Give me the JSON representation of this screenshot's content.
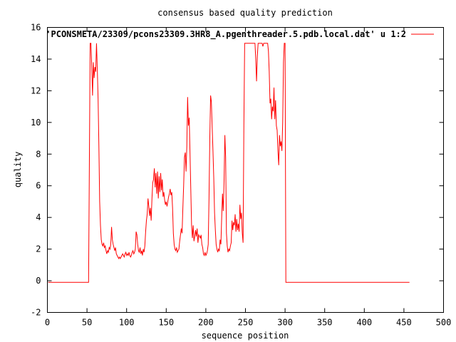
{
  "chart_data": {
    "type": "line",
    "title": "consensus based quality prediction",
    "xlabel": "sequence position",
    "ylabel": "quality",
    "xlim": [
      0,
      500
    ],
    "ylim": [
      -2,
      16
    ],
    "xticks": [
      0,
      50,
      100,
      150,
      200,
      250,
      300,
      350,
      400,
      450,
      500
    ],
    "yticks": [
      -2,
      0,
      2,
      4,
      6,
      8,
      10,
      12,
      14,
      16
    ],
    "grid": false,
    "legend_position": "top-right",
    "colors": {
      "series": "#ff0000",
      "axes": "#000000"
    },
    "series": [
      {
        "name": "'PCONSMETA/23309/pcons23309.3HR8_A.pgenthreader.5.pdb.local.dat' u 1:2",
        "points": [
          [
            1,
            -0.1
          ],
          [
            52,
            -0.1
          ],
          [
            53,
            7.5
          ],
          [
            54,
            15
          ],
          [
            55,
            15
          ],
          [
            56,
            13.5
          ],
          [
            57,
            11.7
          ],
          [
            58,
            13.8
          ],
          [
            59,
            12.8
          ],
          [
            60,
            13.5
          ],
          [
            61,
            13.2
          ],
          [
            62,
            15
          ],
          [
            63,
            13.4
          ],
          [
            64,
            11.5
          ],
          [
            65,
            8.5
          ],
          [
            66,
            5
          ],
          [
            67,
            3.5
          ],
          [
            68,
            2.6
          ],
          [
            69,
            2.3
          ],
          [
            70,
            2.2
          ],
          [
            71,
            2.4
          ],
          [
            72,
            2.1
          ],
          [
            73,
            2.2
          ],
          [
            74,
            1.9
          ],
          [
            75,
            1.7
          ],
          [
            76,
            1.9
          ],
          [
            77,
            1.8
          ],
          [
            78,
            2.1
          ],
          [
            79,
            2
          ],
          [
            80,
            2.3
          ],
          [
            81,
            3.4
          ],
          [
            82,
            2.6
          ],
          [
            83,
            2.3
          ],
          [
            84,
            2.1
          ],
          [
            85,
            1.9
          ],
          [
            86,
            2.1
          ],
          [
            87,
            1.7
          ],
          [
            88,
            1.6
          ],
          [
            89,
            1.5
          ],
          [
            90,
            1.4
          ],
          [
            91,
            1.5
          ],
          [
            92,
            1.4
          ],
          [
            93,
            1.5
          ],
          [
            94,
            1.6
          ],
          [
            95,
            1.7
          ],
          [
            96,
            1.6
          ],
          [
            97,
            1.5
          ],
          [
            98,
            1.7
          ],
          [
            99,
            1.8
          ],
          [
            100,
            1.6
          ],
          [
            101,
            1.7
          ],
          [
            102,
            1.6
          ],
          [
            103,
            1.8
          ],
          [
            104,
            1.6
          ],
          [
            105,
            1.5
          ],
          [
            106,
            1.6
          ],
          [
            107,
            1.8
          ],
          [
            108,
            1.9
          ],
          [
            109,
            1.7
          ],
          [
            110,
            1.8
          ],
          [
            111,
            2
          ],
          [
            112,
            3.1
          ],
          [
            113,
            2.9
          ],
          [
            114,
            2.3
          ],
          [
            115,
            1.9
          ],
          [
            116,
            1.8
          ],
          [
            117,
            2.1
          ],
          [
            118,
            1.7
          ],
          [
            119,
            1.9
          ],
          [
            120,
            1.6
          ],
          [
            121,
            2
          ],
          [
            122,
            1.8
          ],
          [
            123,
            2.2
          ],
          [
            124,
            3.1
          ],
          [
            125,
            3.8
          ],
          [
            126,
            4.2
          ],
          [
            127,
            5.2
          ],
          [
            128,
            4.7
          ],
          [
            129,
            4.1
          ],
          [
            130,
            4.6
          ],
          [
            131,
            3.8
          ],
          [
            132,
            5.2
          ],
          [
            133,
            6.2
          ],
          [
            134,
            6.4
          ],
          [
            135,
            7.1
          ],
          [
            136,
            5.9
          ],
          [
            137,
            6.8
          ],
          [
            138,
            5.5
          ],
          [
            139,
            6.9
          ],
          [
            140,
            5.2
          ],
          [
            141,
            6.6
          ],
          [
            142,
            5.6
          ],
          [
            143,
            6.8
          ],
          [
            144,
            5.7
          ],
          [
            145,
            6.4
          ],
          [
            146,
            5.3
          ],
          [
            147,
            5.6
          ],
          [
            148,
            5.1
          ],
          [
            149,
            4.8
          ],
          [
            150,
            5.0
          ],
          [
            151,
            4.7
          ],
          [
            152,
            5.0
          ],
          [
            153,
            5.3
          ],
          [
            154,
            5.5
          ],
          [
            155,
            5.8
          ],
          [
            156,
            5.4
          ],
          [
            157,
            5.6
          ],
          [
            158,
            4.6
          ],
          [
            159,
            3
          ],
          [
            160,
            2.3
          ],
          [
            161,
            2
          ],
          [
            162,
            1.9
          ],
          [
            163,
            2.1
          ],
          [
            164,
            1.8
          ],
          [
            165,
            1.9
          ],
          [
            166,
            2.0
          ],
          [
            167,
            2.5
          ],
          [
            168,
            2.9
          ],
          [
            169,
            3.3
          ],
          [
            170,
            3.0
          ],
          [
            171,
            4.6
          ],
          [
            172,
            6
          ],
          [
            173,
            7.8
          ],
          [
            174,
            8.1
          ],
          [
            175,
            6.9
          ],
          [
            176,
            8.5
          ],
          [
            177,
            11.6
          ],
          [
            178,
            9.8
          ],
          [
            179,
            10.3
          ],
          [
            180,
            8.1
          ],
          [
            181,
            5.8
          ],
          [
            182,
            3.5
          ],
          [
            183,
            2.7
          ],
          [
            184,
            3.5
          ],
          [
            185,
            2.5
          ],
          [
            186,
            2.8
          ],
          [
            187,
            3.2
          ],
          [
            188,
            2.8
          ],
          [
            189,
            3.3
          ],
          [
            190,
            2.4
          ],
          [
            191,
            2.9
          ],
          [
            192,
            2.8
          ],
          [
            193,
            2.7
          ],
          [
            194,
            2.9
          ],
          [
            195,
            2.3
          ],
          [
            196,
            2.1
          ],
          [
            197,
            1.7
          ],
          [
            198,
            1.6
          ],
          [
            199,
            1.8
          ],
          [
            200,
            1.6
          ],
          [
            201,
            1.7
          ],
          [
            202,
            1.9
          ],
          [
            203,
            2.3
          ],
          [
            204,
            5.2
          ],
          [
            205,
            9
          ],
          [
            206,
            11.7
          ],
          [
            207,
            11.3
          ],
          [
            208,
            9.7
          ],
          [
            209,
            8.2
          ],
          [
            210,
            6.5
          ],
          [
            211,
            4.3
          ],
          [
            212,
            3.2
          ],
          [
            213,
            2.3
          ],
          [
            214,
            2.0
          ],
          [
            215,
            1.8
          ],
          [
            216,
            2.0
          ],
          [
            217,
            1.9
          ],
          [
            218,
            2.6
          ],
          [
            219,
            2.3
          ],
          [
            220,
            4
          ],
          [
            221,
            5.5
          ],
          [
            222,
            4.4
          ],
          [
            223,
            6.3
          ],
          [
            224,
            9.2
          ],
          [
            225,
            7.8
          ],
          [
            226,
            3
          ],
          [
            227,
            2.2
          ],
          [
            228,
            1.8
          ],
          [
            229,
            2
          ],
          [
            230,
            1.9
          ],
          [
            231,
            2.2
          ],
          [
            232,
            2.4
          ],
          [
            233,
            3.8
          ],
          [
            234,
            3.2
          ],
          [
            235,
            3.7
          ],
          [
            236,
            3.5
          ],
          [
            237,
            4.2
          ],
          [
            238,
            3.1
          ],
          [
            239,
            3.9
          ],
          [
            240,
            3.2
          ],
          [
            241,
            3.6
          ],
          [
            242,
            3.1
          ],
          [
            243,
            4.8
          ],
          [
            244,
            3.9
          ],
          [
            245,
            4.3
          ],
          [
            246,
            3.0
          ],
          [
            247,
            2.4
          ],
          [
            248,
            9.8
          ],
          [
            249,
            15
          ],
          [
            262,
            15
          ],
          [
            263,
            14
          ],
          [
            264,
            12.6
          ],
          [
            265,
            14.2
          ],
          [
            266,
            15
          ],
          [
            271,
            15
          ],
          [
            272,
            14.8
          ],
          [
            273,
            15
          ],
          [
            278,
            15
          ],
          [
            279,
            14.5
          ],
          [
            280,
            13.2
          ],
          [
            281,
            11.2
          ],
          [
            282,
            11.5
          ],
          [
            283,
            10.2
          ],
          [
            284,
            11.0
          ],
          [
            285,
            10.7
          ],
          [
            286,
            12.2
          ],
          [
            287,
            10.2
          ],
          [
            288,
            11.4
          ],
          [
            289,
            9.8
          ],
          [
            290,
            9.5
          ],
          [
            291,
            8.2
          ],
          [
            292,
            7.3
          ],
          [
            293,
            9.2
          ],
          [
            294,
            8.5
          ],
          [
            295,
            8.8
          ],
          [
            296,
            8.2
          ],
          [
            297,
            10
          ],
          [
            298,
            13.8
          ],
          [
            299,
            15
          ],
          [
            300,
            15
          ],
          [
            301,
            -0.1
          ],
          [
            457,
            -0.1
          ]
        ]
      }
    ]
  }
}
